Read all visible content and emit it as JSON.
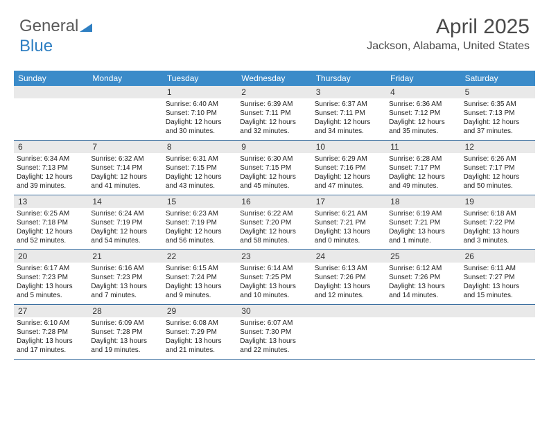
{
  "brand": {
    "part1": "General",
    "part2": "Blue"
  },
  "header": {
    "month_title": "April 2025",
    "location": "Jackson, Alabama, United States"
  },
  "colors": {
    "header_bg": "#3b8bc9",
    "header_text": "#ffffff",
    "daynum_bg": "#e9e9e9",
    "week_border": "#3b6fa0",
    "body_text": "#222222",
    "title_text": "#4a4a4a"
  },
  "weekdays": [
    "Sunday",
    "Monday",
    "Tuesday",
    "Wednesday",
    "Thursday",
    "Friday",
    "Saturday"
  ],
  "first_weekday_index": 2,
  "days": [
    {
      "n": 1,
      "sunrise": "6:40 AM",
      "sunset": "7:10 PM",
      "daylight": "12 hours and 30 minutes."
    },
    {
      "n": 2,
      "sunrise": "6:39 AM",
      "sunset": "7:11 PM",
      "daylight": "12 hours and 32 minutes."
    },
    {
      "n": 3,
      "sunrise": "6:37 AM",
      "sunset": "7:11 PM",
      "daylight": "12 hours and 34 minutes."
    },
    {
      "n": 4,
      "sunrise": "6:36 AM",
      "sunset": "7:12 PM",
      "daylight": "12 hours and 35 minutes."
    },
    {
      "n": 5,
      "sunrise": "6:35 AM",
      "sunset": "7:13 PM",
      "daylight": "12 hours and 37 minutes."
    },
    {
      "n": 6,
      "sunrise": "6:34 AM",
      "sunset": "7:13 PM",
      "daylight": "12 hours and 39 minutes."
    },
    {
      "n": 7,
      "sunrise": "6:32 AM",
      "sunset": "7:14 PM",
      "daylight": "12 hours and 41 minutes."
    },
    {
      "n": 8,
      "sunrise": "6:31 AM",
      "sunset": "7:15 PM",
      "daylight": "12 hours and 43 minutes."
    },
    {
      "n": 9,
      "sunrise": "6:30 AM",
      "sunset": "7:15 PM",
      "daylight": "12 hours and 45 minutes."
    },
    {
      "n": 10,
      "sunrise": "6:29 AM",
      "sunset": "7:16 PM",
      "daylight": "12 hours and 47 minutes."
    },
    {
      "n": 11,
      "sunrise": "6:28 AM",
      "sunset": "7:17 PM",
      "daylight": "12 hours and 49 minutes."
    },
    {
      "n": 12,
      "sunrise": "6:26 AM",
      "sunset": "7:17 PM",
      "daylight": "12 hours and 50 minutes."
    },
    {
      "n": 13,
      "sunrise": "6:25 AM",
      "sunset": "7:18 PM",
      "daylight": "12 hours and 52 minutes."
    },
    {
      "n": 14,
      "sunrise": "6:24 AM",
      "sunset": "7:19 PM",
      "daylight": "12 hours and 54 minutes."
    },
    {
      "n": 15,
      "sunrise": "6:23 AM",
      "sunset": "7:19 PM",
      "daylight": "12 hours and 56 minutes."
    },
    {
      "n": 16,
      "sunrise": "6:22 AM",
      "sunset": "7:20 PM",
      "daylight": "12 hours and 58 minutes."
    },
    {
      "n": 17,
      "sunrise": "6:21 AM",
      "sunset": "7:21 PM",
      "daylight": "13 hours and 0 minutes."
    },
    {
      "n": 18,
      "sunrise": "6:19 AM",
      "sunset": "7:21 PM",
      "daylight": "13 hours and 1 minute."
    },
    {
      "n": 19,
      "sunrise": "6:18 AM",
      "sunset": "7:22 PM",
      "daylight": "13 hours and 3 minutes."
    },
    {
      "n": 20,
      "sunrise": "6:17 AM",
      "sunset": "7:23 PM",
      "daylight": "13 hours and 5 minutes."
    },
    {
      "n": 21,
      "sunrise": "6:16 AM",
      "sunset": "7:23 PM",
      "daylight": "13 hours and 7 minutes."
    },
    {
      "n": 22,
      "sunrise": "6:15 AM",
      "sunset": "7:24 PM",
      "daylight": "13 hours and 9 minutes."
    },
    {
      "n": 23,
      "sunrise": "6:14 AM",
      "sunset": "7:25 PM",
      "daylight": "13 hours and 10 minutes."
    },
    {
      "n": 24,
      "sunrise": "6:13 AM",
      "sunset": "7:26 PM",
      "daylight": "13 hours and 12 minutes."
    },
    {
      "n": 25,
      "sunrise": "6:12 AM",
      "sunset": "7:26 PM",
      "daylight": "13 hours and 14 minutes."
    },
    {
      "n": 26,
      "sunrise": "6:11 AM",
      "sunset": "7:27 PM",
      "daylight": "13 hours and 15 minutes."
    },
    {
      "n": 27,
      "sunrise": "6:10 AM",
      "sunset": "7:28 PM",
      "daylight": "13 hours and 17 minutes."
    },
    {
      "n": 28,
      "sunrise": "6:09 AM",
      "sunset": "7:28 PM",
      "daylight": "13 hours and 19 minutes."
    },
    {
      "n": 29,
      "sunrise": "6:08 AM",
      "sunset": "7:29 PM",
      "daylight": "13 hours and 21 minutes."
    },
    {
      "n": 30,
      "sunrise": "6:07 AM",
      "sunset": "7:30 PM",
      "daylight": "13 hours and 22 minutes."
    }
  ],
  "labels": {
    "sunrise_prefix": "Sunrise: ",
    "sunset_prefix": "Sunset: ",
    "daylight_prefix": "Daylight: "
  }
}
